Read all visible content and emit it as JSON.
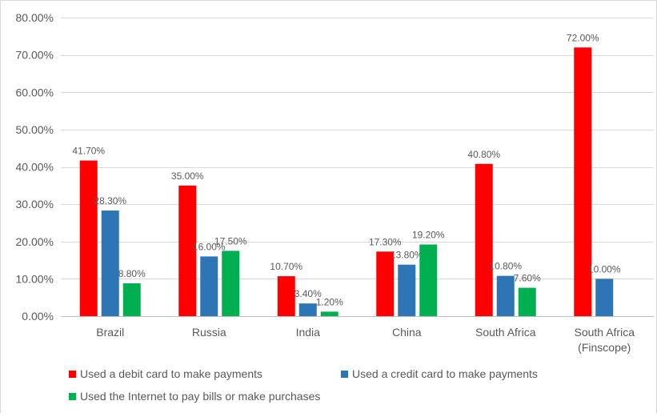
{
  "chart_data": {
    "type": "bar",
    "title": "",
    "xlabel": "",
    "ylabel": "",
    "ylim": [
      0,
      80
    ],
    "y_tick_values": [
      0,
      10,
      20,
      30,
      40,
      50,
      60,
      70,
      80
    ],
    "y_tick_labels": [
      "0.00%",
      "10.00%",
      "20.00%",
      "30.00%",
      "40.00%",
      "50.00%",
      "60.00%",
      "70.00%",
      "80.00%"
    ],
    "grid": true,
    "legend_position": "bottom",
    "categories": [
      [
        "Brazil"
      ],
      [
        "Russia"
      ],
      [
        "India"
      ],
      [
        "China"
      ],
      [
        "South Africa"
      ],
      [
        "South Africa",
        "(Finscope)"
      ]
    ],
    "series": [
      {
        "name": "Used a debit card to make payments",
        "color": "#ff0000",
        "values": [
          41.7,
          35.0,
          10.7,
          17.3,
          40.8,
          72.0
        ],
        "labels": [
          "41.70%",
          "35.00%",
          "10.70%",
          "17.30%",
          "40.80%",
          "72.00%"
        ]
      },
      {
        "name": "Used a credit card to make payments",
        "color": "#2e75b6",
        "values": [
          28.3,
          16.0,
          3.4,
          13.8,
          10.8,
          10.0
        ],
        "labels": [
          "28.30%",
          "16.00%",
          "3.40%",
          "13.80%",
          "10.80%",
          "10.00%"
        ]
      },
      {
        "name": "Used the Internet to pay bills or make purchases",
        "color": "#00b050",
        "values": [
          8.8,
          17.5,
          1.2,
          19.2,
          7.6,
          null
        ],
        "labels": [
          "8.80%",
          "17.50%",
          "1.20%",
          "19.20%",
          "7.60%",
          ""
        ]
      }
    ]
  }
}
